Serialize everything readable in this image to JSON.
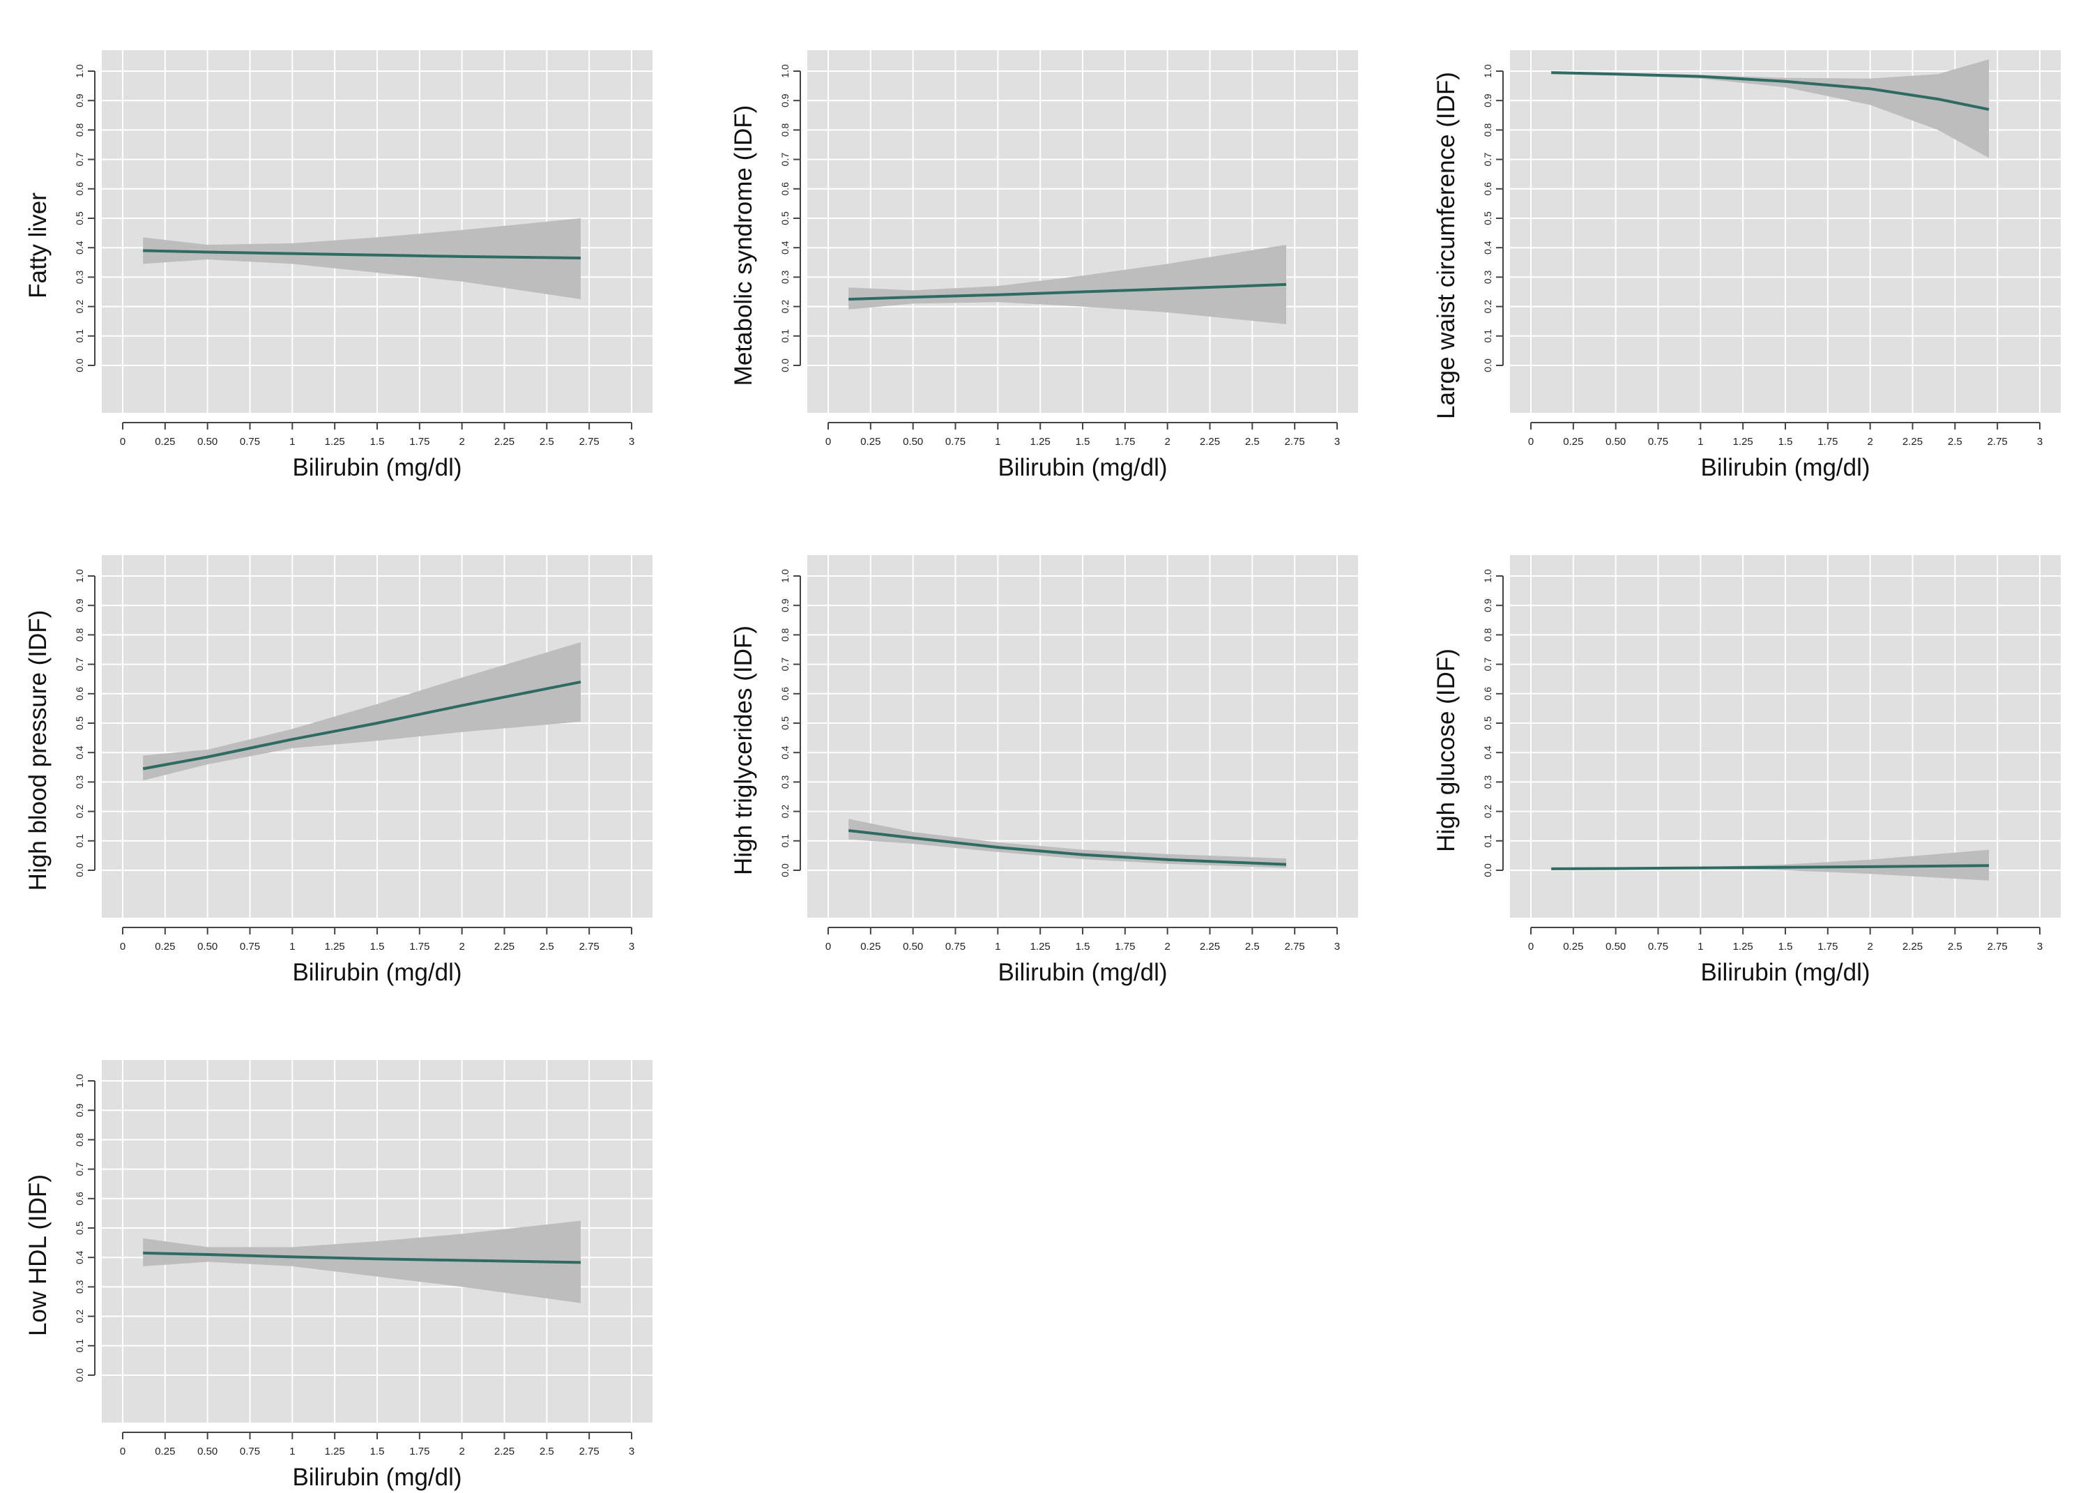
{
  "colors": {
    "panel_bg": "#e0e0e0",
    "grid": "#ffffff",
    "band": "#bdbdbd",
    "line": "#2e6b62",
    "axis": "#444444",
    "text": "#111111"
  },
  "chart_data": [
    {
      "type": "line",
      "ylabel": "Fatty liver",
      "xlabel": "Bilirubin (mg/dl)",
      "xlim": [
        0,
        3
      ],
      "ylim": [
        0,
        1
      ],
      "x_ticks": [
        "0",
        "0.25",
        "0.50",
        "0.75",
        "1",
        "1.25",
        "1.5",
        "1.75",
        "2",
        "2.25",
        "2.5",
        "2.75",
        "3"
      ],
      "y_ticks": [
        "0.0",
        "0.1",
        "0.2",
        "0.3",
        "0.4",
        "0.5",
        "0.6",
        "0.7",
        "0.8",
        "0.9",
        "1.0"
      ],
      "grid": true,
      "x": [
        0.12,
        0.5,
        1.0,
        1.5,
        2.0,
        2.7
      ],
      "fit": [
        0.39,
        0.385,
        0.38,
        0.375,
        0.37,
        0.365
      ],
      "lower": [
        0.345,
        0.36,
        0.345,
        0.315,
        0.285,
        0.225
      ],
      "upper": [
        0.435,
        0.41,
        0.415,
        0.435,
        0.46,
        0.5
      ]
    },
    {
      "type": "line",
      "ylabel": "Metabolic syndrome (IDF)",
      "xlabel": "Bilirubin (mg/dl)",
      "xlim": [
        0,
        3
      ],
      "ylim": [
        0,
        1
      ],
      "x_ticks": [
        "0",
        "0.25",
        "0.50",
        "0.75",
        "1",
        "1.25",
        "1.5",
        "1.75",
        "2",
        "2.25",
        "2.5",
        "2.75",
        "3"
      ],
      "y_ticks": [
        "0.0",
        "0.1",
        "0.2",
        "0.3",
        "0.4",
        "0.5",
        "0.6",
        "0.7",
        "0.8",
        "0.9",
        "1.0"
      ],
      "grid": true,
      "x": [
        0.12,
        0.5,
        1.0,
        1.5,
        2.0,
        2.7
      ],
      "fit": [
        0.225,
        0.232,
        0.24,
        0.25,
        0.26,
        0.275
      ],
      "lower": [
        0.19,
        0.21,
        0.215,
        0.2,
        0.18,
        0.14
      ],
      "upper": [
        0.265,
        0.255,
        0.27,
        0.305,
        0.345,
        0.41
      ]
    },
    {
      "type": "line",
      "ylabel": "Large waist circumference (IDF)",
      "xlabel": "Bilirubin (mg/dl)",
      "xlim": [
        0,
        3
      ],
      "ylim": [
        0,
        1
      ],
      "x_ticks": [
        "0",
        "0.25",
        "0.50",
        "0.75",
        "1",
        "1.25",
        "1.5",
        "1.75",
        "2",
        "2.25",
        "2.5",
        "2.75",
        "3"
      ],
      "y_ticks": [
        "0.0",
        "0.1",
        "0.2",
        "0.3",
        "0.4",
        "0.5",
        "0.6",
        "0.7",
        "0.8",
        "0.9",
        "1.0"
      ],
      "grid": true,
      "x": [
        0.12,
        0.5,
        1.0,
        1.5,
        2.0,
        2.4,
        2.7
      ],
      "fit": [
        0.995,
        0.99,
        0.982,
        0.965,
        0.94,
        0.905,
        0.87
      ],
      "lower": [
        0.99,
        0.985,
        0.975,
        0.945,
        0.885,
        0.8,
        0.705
      ],
      "upper": [
        0.998,
        0.995,
        0.987,
        0.977,
        0.975,
        0.99,
        1.04
      ]
    },
    {
      "type": "line",
      "ylabel": "High blood pressure (IDF)",
      "xlabel": "Bilirubin (mg/dl)",
      "xlim": [
        0,
        3
      ],
      "ylim": [
        0,
        1
      ],
      "x_ticks": [
        "0",
        "0.25",
        "0.50",
        "0.75",
        "1",
        "1.25",
        "1.5",
        "1.75",
        "2",
        "2.25",
        "2.5",
        "2.75",
        "3"
      ],
      "y_ticks": [
        "0.0",
        "0.1",
        "0.2",
        "0.3",
        "0.4",
        "0.5",
        "0.6",
        "0.7",
        "0.8",
        "0.9",
        "1.0"
      ],
      "grid": true,
      "x": [
        0.12,
        0.5,
        1.0,
        1.5,
        2.0,
        2.7
      ],
      "fit": [
        0.345,
        0.385,
        0.445,
        0.5,
        0.56,
        0.64
      ],
      "lower": [
        0.305,
        0.36,
        0.415,
        0.44,
        0.47,
        0.505
      ],
      "upper": [
        0.39,
        0.41,
        0.48,
        0.565,
        0.655,
        0.775
      ]
    },
    {
      "type": "line",
      "ylabel": "High triglycerides (IDF)",
      "xlabel": "Bilirubin (mg/dl)",
      "xlim": [
        0,
        3
      ],
      "ylim": [
        0,
        1
      ],
      "x_ticks": [
        "0",
        "0.25",
        "0.50",
        "0.75",
        "1",
        "1.25",
        "1.5",
        "1.75",
        "2",
        "2.25",
        "2.5",
        "2.75",
        "3"
      ],
      "y_ticks": [
        "0.0",
        "0.1",
        "0.2",
        "0.3",
        "0.4",
        "0.5",
        "0.6",
        "0.7",
        "0.8",
        "0.9",
        "1.0"
      ],
      "grid": true,
      "x": [
        0.12,
        0.5,
        1.0,
        1.5,
        2.0,
        2.7
      ],
      "fit": [
        0.135,
        0.11,
        0.078,
        0.053,
        0.036,
        0.02
      ],
      "lower": [
        0.105,
        0.09,
        0.062,
        0.038,
        0.022,
        0.008
      ],
      "upper": [
        0.175,
        0.13,
        0.095,
        0.07,
        0.055,
        0.04
      ]
    },
    {
      "type": "line",
      "ylabel": "High glucose (IDF)",
      "xlabel": "Bilirubin (mg/dl)",
      "xlim": [
        0,
        3
      ],
      "ylim": [
        0,
        1
      ],
      "x_ticks": [
        "0",
        "0.25",
        "0.50",
        "0.75",
        "1",
        "1.25",
        "1.5",
        "1.75",
        "2",
        "2.25",
        "2.5",
        "2.75",
        "3"
      ],
      "y_ticks": [
        "0.0",
        "0.1",
        "0.2",
        "0.3",
        "0.4",
        "0.5",
        "0.6",
        "0.7",
        "0.8",
        "0.9",
        "1.0"
      ],
      "grid": true,
      "x": [
        0.12,
        0.5,
        1.0,
        1.5,
        2.0,
        2.7
      ],
      "fit": [
        0.005,
        0.006,
        0.008,
        0.01,
        0.012,
        0.016
      ],
      "lower": [
        0.003,
        0.004,
        0.005,
        0.0,
        -0.012,
        -0.035
      ],
      "upper": [
        0.007,
        0.008,
        0.011,
        0.02,
        0.036,
        0.07
      ]
    },
    {
      "type": "line",
      "ylabel": "Low HDL (IDF)",
      "xlabel": "Bilirubin (mg/dl)",
      "xlim": [
        0,
        3
      ],
      "ylim": [
        0,
        1
      ],
      "x_ticks": [
        "0",
        "0.25",
        "0.50",
        "0.75",
        "1",
        "1.25",
        "1.5",
        "1.75",
        "2",
        "2.25",
        "2.5",
        "2.75",
        "3"
      ],
      "y_ticks": [
        "0.0",
        "0.1",
        "0.2",
        "0.3",
        "0.4",
        "0.5",
        "0.6",
        "0.7",
        "0.8",
        "0.9",
        "1.0"
      ],
      "grid": true,
      "x": [
        0.12,
        0.5,
        1.0,
        1.5,
        2.0,
        2.7
      ],
      "fit": [
        0.415,
        0.41,
        0.402,
        0.395,
        0.39,
        0.383
      ],
      "lower": [
        0.37,
        0.385,
        0.37,
        0.335,
        0.3,
        0.245
      ],
      "upper": [
        0.465,
        0.435,
        0.435,
        0.455,
        0.48,
        0.525
      ]
    }
  ]
}
